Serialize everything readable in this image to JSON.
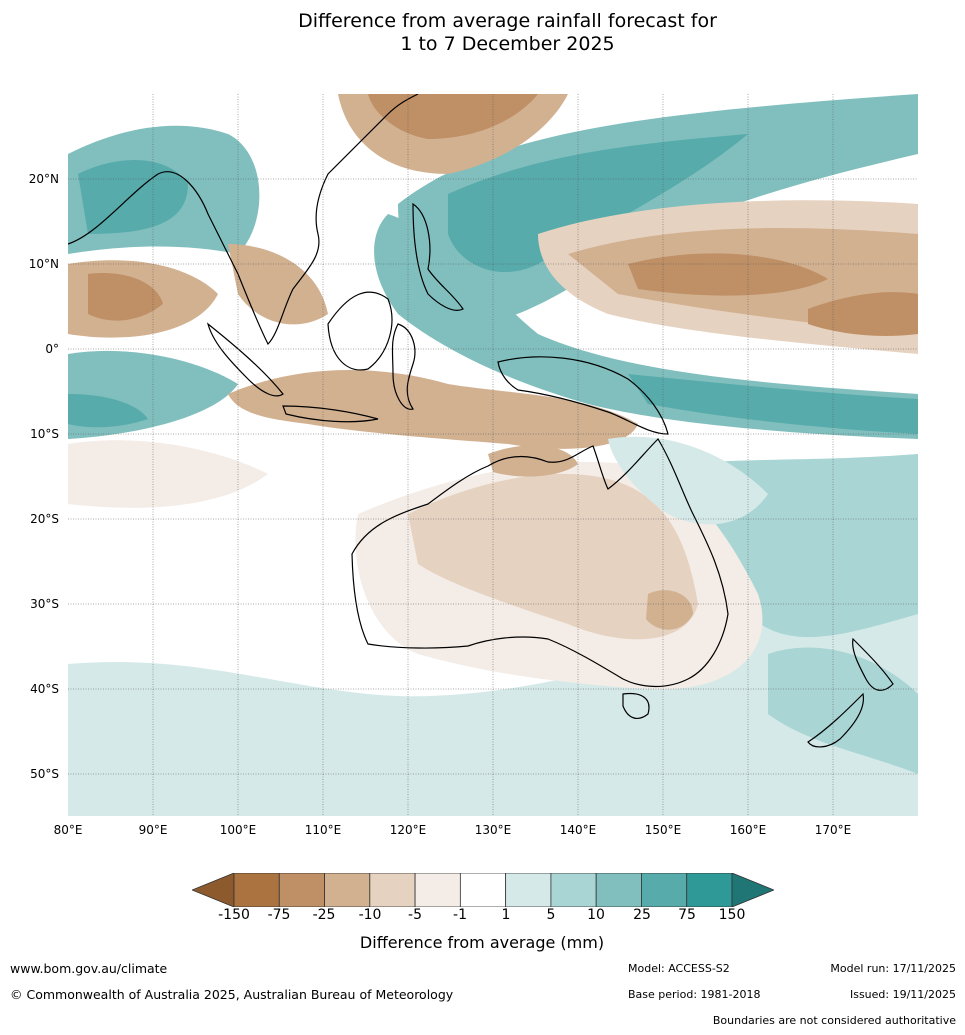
{
  "title": {
    "line1": "Difference from average rainfall forecast for",
    "line2": "1 to 7 December 2025"
  },
  "map": {
    "lon_labels": [
      "80°E",
      "90°E",
      "100°E",
      "110°E",
      "120°E",
      "130°E",
      "140°E",
      "150°E",
      "160°E",
      "170°E"
    ],
    "lat_labels": [
      "20°N",
      "10°N",
      "0°",
      "10°S",
      "20°S",
      "30°S",
      "40°S",
      "50°S"
    ],
    "lon_range": [
      80,
      180
    ],
    "lat_range": [
      -55,
      30
    ]
  },
  "legend": {
    "title": "Difference from average (mm)",
    "ticks": [
      "-150",
      "-75",
      "-25",
      "-10",
      "-5",
      "-1",
      "1",
      "5",
      "10",
      "25",
      "75",
      "150"
    ],
    "colors": [
      "#8c5a2c",
      "#ab7340",
      "#bf9066",
      "#d2b191",
      "#e6d2c0",
      "#f4ece6",
      "#ffffff",
      "#d5eae8",
      "#a9d5d4",
      "#80bfbe",
      "#58abab",
      "#2f9997",
      "#207575"
    ]
  },
  "footer": {
    "website": "www.bom.gov.au/climate",
    "copyright": "© Commonwealth of Australia 2025, Australian Bureau of Meteorology",
    "model": "Model: ACCESS-S2",
    "base_period": "Base period: 1981-2018",
    "model_run": "Model run: 17/11/2025",
    "issued": "Issued: 19/11/2025",
    "disclaimer": "Boundaries are not considered authoritative"
  }
}
